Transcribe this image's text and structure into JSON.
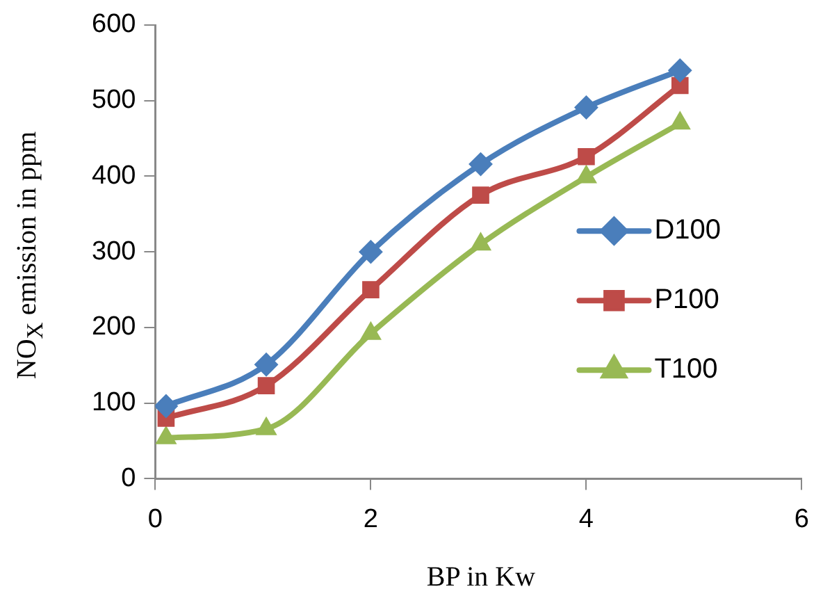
{
  "chart_data": {
    "type": "line",
    "xlabel": "BP in Kw",
    "ylabel": "NO$_{X}$ emission  in ppm",
    "xlim": [
      0,
      6
    ],
    "xticks": [
      0,
      2,
      4,
      6
    ],
    "ylim": [
      0,
      600
    ],
    "yticks": [
      0,
      100,
      200,
      300,
      400,
      500,
      600
    ],
    "x": [
      0.1,
      1.03,
      2,
      3.02,
      4,
      4.87
    ],
    "series": [
      {
        "name": "D100",
        "color": "#4a7ebb",
        "marker": "diamond",
        "values": [
          96,
          151,
          300,
          416,
          491,
          540
        ]
      },
      {
        "name": "P100",
        "color": "#be4b48",
        "marker": "square",
        "values": [
          80,
          123,
          250,
          375,
          426,
          520
        ]
      },
      {
        "name": "T100",
        "color": "#98b954",
        "marker": "triangle",
        "values": [
          54,
          66,
          192,
          310,
          399,
          470
        ]
      }
    ],
    "legend": "right",
    "grid": false,
    "line_style": "solid"
  }
}
